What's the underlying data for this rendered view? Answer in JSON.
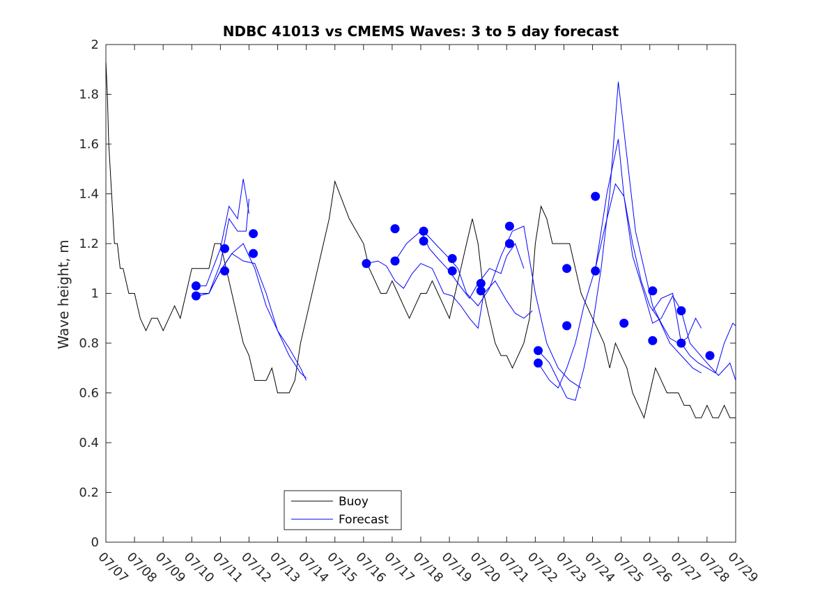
{
  "chart_data": {
    "type": "line",
    "title": "NDBC 41013 vs CMEMS Waves: 3 to 5 day forecast",
    "xlabel": "",
    "ylabel": "Wave height, m",
    "ylim": [
      0,
      2
    ],
    "xlim": [
      "07/07",
      "07/29"
    ],
    "grid": false,
    "legend_position": "bottom-left",
    "x_tick_labels": [
      "07/07",
      "07/08",
      "07/09",
      "07/10",
      "07/11",
      "07/12",
      "07/13",
      "07/14",
      "07/15",
      "07/16",
      "07/17",
      "07/18",
      "07/19",
      "07/20",
      "07/21",
      "07/22",
      "07/23",
      "07/24",
      "07/25",
      "07/26",
      "07/27",
      "07/28",
      "07/29"
    ],
    "y_ticks": [
      0,
      0.2,
      0.4,
      0.6,
      0.8,
      1,
      1.2,
      1.4,
      1.6,
      1.8,
      2
    ],
    "y_tick_labels": [
      "0",
      "0.2",
      "0.4",
      "0.6",
      "0.8",
      "1",
      "1.2",
      "1.4",
      "1.6",
      "1.8",
      "2"
    ],
    "colors": {
      "buoy": "#000000",
      "forecast": "#0000ff",
      "markers": "#0000ff"
    },
    "series": [
      {
        "name": "Buoy",
        "x_days": [
          0,
          0.05,
          0.1,
          0.15,
          0.2,
          0.25,
          0.3,
          0.4,
          0.5,
          0.6,
          0.7,
          0.8,
          0.9,
          1.0,
          1.2,
          1.4,
          1.6,
          1.8,
          2.0,
          2.2,
          2.4,
          2.6,
          2.8,
          3.0,
          3.2,
          3.4,
          3.6,
          3.8,
          4.0,
          4.2,
          4.4,
          4.6,
          4.8,
          5.0,
          5.2,
          5.4,
          5.6,
          5.8,
          6.0,
          6.2,
          6.4,
          6.6,
          6.8,
          7.0,
          7.2,
          7.4,
          7.6,
          7.8,
          8.0,
          8.5,
          9.0,
          9.2,
          9.4,
          9.6,
          9.8,
          10.0,
          10.2,
          10.4,
          10.6,
          10.8,
          11.0,
          11.2,
          11.4,
          11.6,
          11.8,
          12.0,
          12.2,
          12.4,
          12.6,
          12.8,
          13.0,
          13.2,
          13.4,
          13.6,
          13.8,
          14.0,
          14.2,
          14.4,
          14.6,
          14.8,
          15.0,
          15.2,
          15.4,
          15.6,
          15.8,
          16.0,
          16.2,
          16.4,
          16.6,
          16.8,
          17.0,
          17.2,
          17.4,
          17.6,
          17.8,
          18.0,
          18.2,
          18.4,
          18.6,
          18.8,
          19.0,
          19.2,
          19.4,
          19.6,
          19.8,
          20.0,
          20.2,
          20.4,
          20.6,
          20.8,
          21.0,
          21.2,
          21.4,
          21.6,
          21.8,
          22.0
        ],
        "values": [
          1.93,
          1.8,
          1.6,
          1.5,
          1.4,
          1.3,
          1.2,
          1.2,
          1.1,
          1.1,
          1.05,
          1.0,
          1.0,
          1.0,
          0.9,
          0.85,
          0.9,
          0.9,
          0.85,
          0.9,
          0.95,
          0.9,
          1.0,
          1.1,
          1.1,
          1.1,
          1.1,
          1.2,
          1.2,
          1.1,
          1.0,
          0.9,
          0.8,
          0.75,
          0.65,
          0.65,
          0.65,
          0.7,
          0.6,
          0.6,
          0.6,
          0.65,
          0.8,
          0.9,
          1.0,
          1.1,
          1.2,
          1.3,
          1.45,
          1.3,
          1.2,
          1.1,
          1.05,
          1.0,
          1.0,
          1.05,
          1.0,
          0.95,
          0.9,
          0.95,
          1.0,
          1.0,
          1.05,
          1.0,
          0.95,
          0.9,
          1.0,
          1.1,
          1.2,
          1.3,
          1.2,
          1.0,
          0.9,
          0.8,
          0.75,
          0.75,
          0.7,
          0.75,
          0.8,
          0.9,
          1.2,
          1.35,
          1.3,
          1.2,
          1.2,
          1.2,
          1.2,
          1.1,
          1.0,
          0.95,
          0.9,
          0.85,
          0.8,
          0.7,
          0.8,
          0.75,
          0.7,
          0.6,
          0.55,
          0.5,
          0.6,
          0.7,
          0.65,
          0.6,
          0.6,
          0.6,
          0.55,
          0.55,
          0.5,
          0.5,
          0.55,
          0.5,
          0.5,
          0.55,
          0.5,
          0.5
        ]
      },
      {
        "name": "Forecast",
        "lines": [
          {
            "x_days": [
              3.2,
              3.6,
              4.0,
              4.4,
              4.8,
              5.2,
              5.6,
              6.0,
              6.4,
              6.8,
              7.0
            ],
            "values": [
              1.0,
              1.0,
              1.09,
              1.16,
              1.13,
              1.12,
              1.0,
              0.85,
              0.78,
              0.7,
              0.65
            ]
          },
          {
            "x_days": [
              3.2,
              3.6,
              4.0,
              4.4,
              4.8,
              5.2,
              5.6,
              6.0,
              6.4,
              6.8,
              7.0
            ],
            "values": [
              0.99,
              1.0,
              1.09,
              1.16,
              1.2,
              1.1,
              0.95,
              0.85,
              0.75,
              0.68,
              0.66
            ]
          },
          {
            "x_days": [
              3.2,
              3.5,
              4.0,
              4.3,
              4.6,
              4.8,
              5.0
            ],
            "values": [
              1.03,
              1.03,
              1.18,
              1.35,
              1.3,
              1.46,
              1.32
            ]
          },
          {
            "x_days": [
              3.2,
              3.6,
              4.0,
              4.3,
              4.6,
              4.9,
              5.0
            ],
            "values": [
              0.99,
              1.0,
              1.12,
              1.3,
              1.25,
              1.25,
              1.38
            ]
          },
          {
            "x_days": [
              9.1,
              9.5,
              9.8,
              10.1,
              10.4,
              10.7,
              11.0,
              11.4,
              11.8,
              12.1,
              12.4,
              12.7,
              13.0,
              13.2,
              13.6,
              14.0,
              14.3,
              14.6,
              14.9
            ],
            "values": [
              1.12,
              1.13,
              1.11,
              1.05,
              1.02,
              1.08,
              1.12,
              1.1,
              1.0,
              0.99,
              0.95,
              0.9,
              0.86,
              1.0,
              1.05,
              0.97,
              0.92,
              0.9,
              0.93
            ]
          },
          {
            "x_days": [
              10.1,
              10.5,
              11.0,
              11.3,
              11.6,
              12.0,
              12.3,
              12.7,
              13.0,
              13.4,
              13.8,
              14.0,
              14.3,
              14.6
            ],
            "values": [
              1.13,
              1.2,
              1.25,
              1.18,
              1.14,
              1.09,
              1.04,
              0.98,
              1.04,
              1.1,
              1.08,
              1.15,
              1.2,
              1.1
            ]
          },
          {
            "x_days": [
              11.1,
              11.5,
              12.0,
              12.3,
              12.6,
              13.0,
              13.4,
              13.8,
              14.2,
              14.6,
              15.0,
              15.4,
              15.8,
              16.2,
              16.6
            ],
            "values": [
              1.25,
              1.2,
              1.14,
              1.1,
              1.0,
              0.95,
              1.02,
              1.15,
              1.25,
              1.27,
              1.0,
              0.8,
              0.7,
              0.65,
              0.62
            ]
          },
          {
            "x_days": [
              15.1,
              15.5,
              15.8,
              16.1,
              16.4,
              16.7,
              17.0,
              17.3,
              17.6,
              17.9,
              18.2,
              18.5,
              18.8,
              19.1,
              19.4,
              19.7,
              20.0,
              20.3,
              20.6,
              20.8
            ],
            "values": [
              0.77,
              0.72,
              0.65,
              0.58,
              0.57,
              0.7,
              0.87,
              1.1,
              1.4,
              1.85,
              1.55,
              1.25,
              1.1,
              0.95,
              0.88,
              0.82,
              0.8,
              0.82,
              0.9,
              0.86
            ]
          },
          {
            "x_days": [
              15.1,
              15.5,
              15.8,
              16.1,
              16.4,
              16.7,
              17.1,
              17.5,
              17.9,
              18.1,
              18.4,
              18.7,
              19.0,
              19.3,
              19.7,
              20.1,
              20.5,
              20.8
            ],
            "values": [
              0.72,
              0.65,
              0.62,
              0.7,
              0.8,
              0.95,
              1.1,
              1.4,
              1.62,
              1.39,
              1.2,
              1.05,
              0.95,
              0.9,
              0.8,
              0.75,
              0.7,
              0.68
            ]
          },
          {
            "x_days": [
              17.1,
              17.4,
              17.8,
              18.1,
              18.4,
              18.8,
              19.1,
              19.4,
              19.8,
              20.1,
              20.4,
              20.7,
              21.0,
              21.4,
              21.8,
              22.0
            ],
            "values": [
              1.1,
              1.25,
              1.44,
              1.39,
              1.15,
              1.0,
              0.88,
              0.9,
              0.99,
              0.93,
              0.8,
              0.76,
              0.72,
              0.67,
              0.72,
              0.65
            ]
          },
          {
            "x_days": [
              19.1,
              19.4,
              19.8,
              20.1,
              20.4,
              20.7,
              21.0,
              21.3,
              21.6,
              21.9,
              22.0
            ],
            "values": [
              0.93,
              0.98,
              1.0,
              0.8,
              0.75,
              0.72,
              0.7,
              0.68,
              0.8,
              0.88,
              0.87
            ]
          }
        ],
        "markers": {
          "x_days": [
            3.15,
            3.15,
            4.15,
            4.15,
            5.15,
            5.15,
            9.1,
            10.1,
            10.1,
            11.1,
            11.1,
            12.1,
            12.1,
            13.1,
            13.1,
            14.1,
            14.1,
            15.1,
            15.1,
            16.1,
            16.1,
            17.1,
            17.1,
            18.1,
            19.1,
            19.1,
            20.1,
            20.1,
            21.1
          ],
          "values": [
            1.03,
            0.99,
            1.18,
            1.09,
            1.24,
            1.16,
            1.12,
            1.26,
            1.13,
            1.25,
            1.21,
            1.14,
            1.09,
            1.04,
            1.01,
            1.27,
            1.2,
            0.77,
            0.72,
            1.1,
            0.87,
            1.39,
            1.09,
            0.88,
            0.81,
            1.01,
            0.93,
            0.8,
            0.75
          ]
        }
      }
    ],
    "legend": {
      "items": [
        "Buoy",
        "Forecast"
      ]
    }
  }
}
